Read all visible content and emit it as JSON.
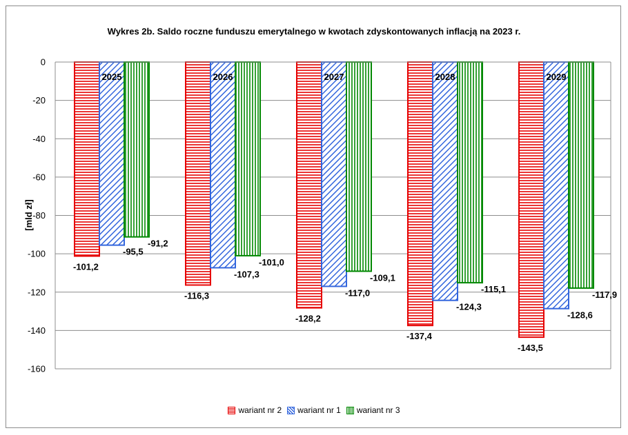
{
  "chart_data": {
    "type": "bar",
    "title": "Wykres 2b. Saldo roczne funduszu emerytalnego w kwotach zdyskontowanych inflacją na 2023 r.",
    "ylabel": "[mld zł]",
    "xlabel": "",
    "ylim": [
      -160,
      0
    ],
    "yticks": [
      0,
      -20,
      -40,
      -60,
      -80,
      -100,
      -120,
      -140,
      -160
    ],
    "grid": true,
    "legend_position": "bottom",
    "categories": [
      "2025",
      "2026",
      "2027",
      "2028",
      "2029"
    ],
    "series": [
      {
        "name": "wariant nr 2",
        "color": "#e60000",
        "pattern": "horizontal",
        "values": [
          -101.2,
          -116.3,
          -128.2,
          -137.4,
          -143.5
        ],
        "labels": [
          "-101,2",
          "-116,3",
          "-128,2",
          "-137,4",
          "-143,5"
        ]
      },
      {
        "name": "wariant nr 1",
        "color": "#3366dd",
        "pattern": "diagonal",
        "values": [
          -95.5,
          -107.3,
          -117.0,
          -124.3,
          -128.6
        ],
        "labels": [
          "-95,5",
          "-107,3",
          "-117,0",
          "-124,3",
          "-128,6"
        ]
      },
      {
        "name": "wariant nr 3",
        "color": "#008800",
        "pattern": "vertical",
        "values": [
          -91.2,
          -101.0,
          -109.1,
          -115.1,
          -117.9
        ],
        "labels": [
          "-91,2",
          "-101,0",
          "-109,1",
          "-115,1",
          "-117,9"
        ]
      }
    ]
  }
}
